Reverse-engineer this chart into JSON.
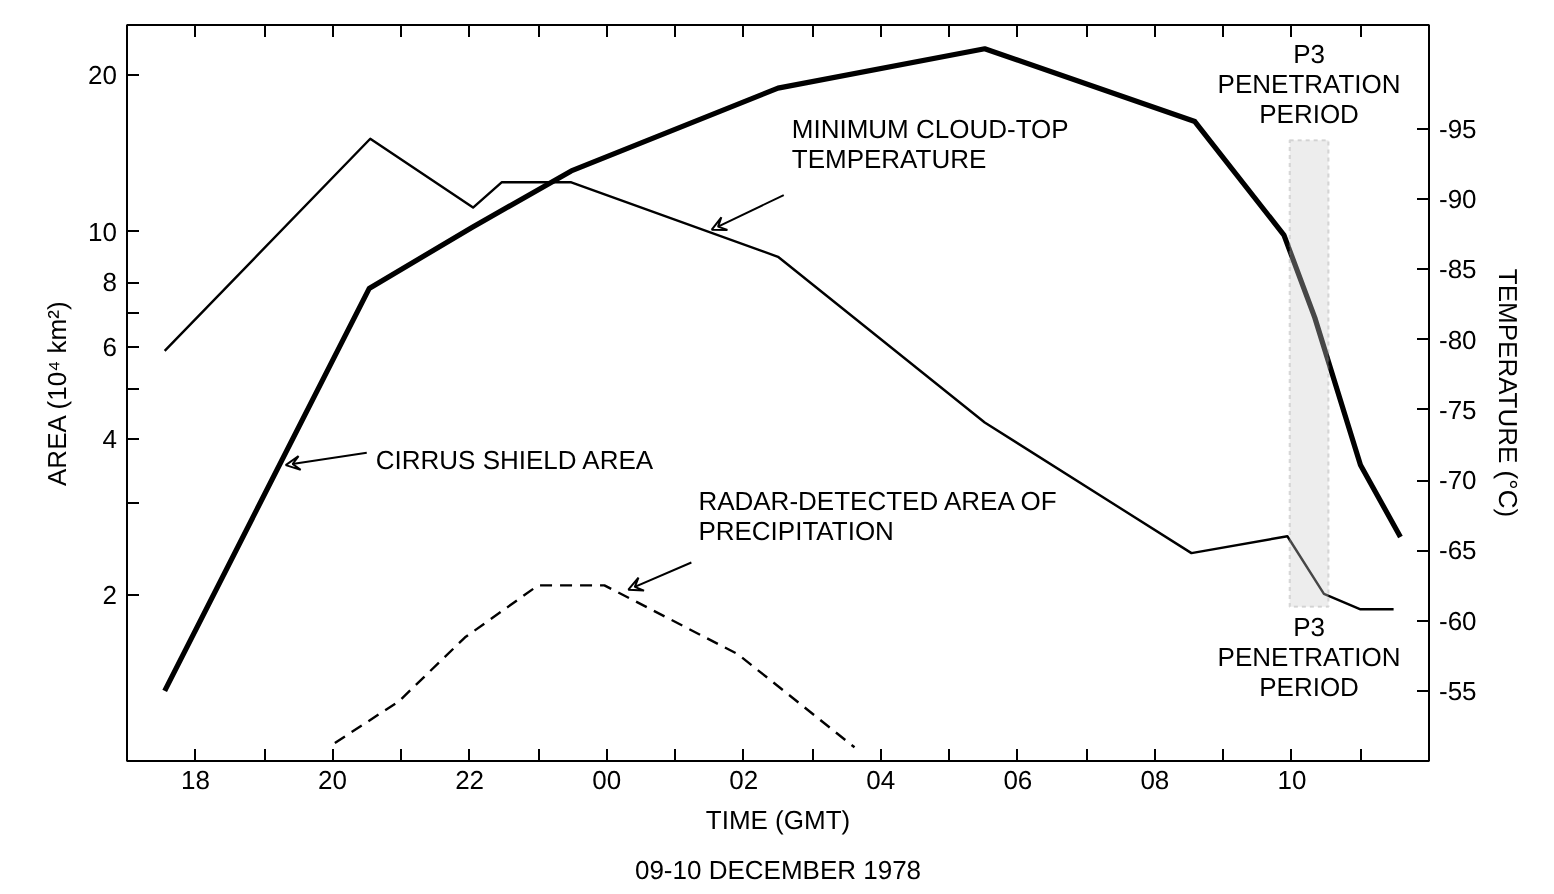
{
  "chart_data": {
    "type": "line",
    "subtitle": "09-10 DECEMBER 1978",
    "xlabel": "TIME (GMT)",
    "ylabel": "AREA (10⁴ km²)",
    "y2label": "TEMPERATURE (°C)",
    "log": "y",
    "grid": false,
    "marker": "none",
    "xlim": [
      "1978-12-09T17:00",
      "1978-12-10T12:00"
    ],
    "xticks": [
      {
        "value": "1978-12-09T18:00",
        "label": "18"
      },
      {
        "value": "1978-12-09T19:00",
        "label": null
      },
      {
        "value": "1978-12-09T20:00",
        "label": "20"
      },
      {
        "value": "1978-12-09T21:00",
        "label": null
      },
      {
        "value": "1978-12-09T22:00",
        "label": "22"
      },
      {
        "value": "1978-12-09T23:00",
        "label": null
      },
      {
        "value": "1978-12-10T00:00",
        "label": "00"
      },
      {
        "value": "1978-12-10T01:00",
        "label": null
      },
      {
        "value": "1978-12-10T02:00",
        "label": "02"
      },
      {
        "value": "1978-12-10T03:00",
        "label": null
      },
      {
        "value": "1978-12-10T04:00",
        "label": "04"
      },
      {
        "value": "1978-12-10T05:00",
        "label": null
      },
      {
        "value": "1978-12-10T06:00",
        "label": "06"
      },
      {
        "value": "1978-12-10T07:00",
        "label": null
      },
      {
        "value": "1978-12-10T08:00",
        "label": "08"
      },
      {
        "value": "1978-12-10T09:00",
        "label": null
      },
      {
        "value": "1978-12-10T10:00",
        "label": "10"
      },
      {
        "value": "1978-12-10T11:00",
        "label": null
      }
    ],
    "ylim": [
      0.96,
      25
    ],
    "yticks": [
      2,
      {
        "value": 3,
        "label": null
      },
      4,
      {
        "value": 5,
        "label": null
      },
      6,
      {
        "value": 7,
        "label": null
      },
      8,
      10,
      20
    ],
    "y2lim": [
      -50,
      -102.4
    ],
    "y2ticks": [
      -55,
      -60,
      -65,
      -70,
      -75,
      -80,
      -85,
      -90,
      -95
    ],
    "series": [
      {
        "color": "#000000",
        "line_style": "solid",
        "x": [
          "1978-12-09T17:33",
          "1978-12-09T20:32",
          "1978-12-09T22:02",
          "1978-12-09T23:29",
          "1978-12-10T02:30",
          "1978-12-10T05:31",
          "1978-12-10T08:35",
          "1978-12-10T09:53",
          "1978-12-10T10:20",
          "1978-12-10T11:00",
          "1978-12-10T11:35"
        ],
        "values": [
          1.31,
          7.78,
          10.2,
          13.1,
          18.9,
          22.5,
          16.3,
          9.86,
          6.84,
          3.56,
          2.59
        ]
      },
      {
        "color": "#000000",
        "line_style": "solid",
        "axis": "y2",
        "x": [
          "1978-12-09T17:33",
          "1978-12-09T20:33",
          "1978-12-09T22:03",
          "1978-12-09T22:28",
          "1978-12-09T23:29",
          "1978-12-10T02:30",
          "1978-12-10T05:31",
          "1978-12-10T08:32",
          "1978-12-10T09:56",
          "1978-12-10T10:28",
          "1978-12-10T11:00",
          "1978-12-10T11:29"
        ],
        "values": [
          -79.2,
          -94.3,
          -89.4,
          -91.2,
          -91.2,
          -85.9,
          -74.1,
          -64.8,
          -66.0,
          -61.9,
          -60.8,
          -60.8
        ]
      },
      {
        "color": "#000000",
        "line_style": "dashed",
        "x": [
          "1978-12-09T20:02",
          "1978-12-09T20:58",
          "1978-12-09T21:56",
          "1978-12-09T23:00",
          "1978-12-09T23:58",
          "1978-12-10T01:55",
          "1978-12-10T03:37"
        ],
        "values": [
          1.04,
          1.25,
          1.66,
          2.09,
          2.09,
          1.54,
          1.02
        ]
      }
    ],
    "bands": [
      {
        "axis": "x",
        "from": "1978-12-10T09:58",
        "to": "1978-12-10T10:32",
        "label": "P3 PENETRATION PERIOD",
        "color": "#cccccc"
      }
    ],
    "annotations": [
      {
        "text": "CIRRUS SHIELD AREA",
        "x": "1978-12-09T19:19",
        "y": 3.56
      },
      {
        "text": "MINIMUM CLOUD-TOP TEMPERATURE",
        "x": "1978-12-10T01:32",
        "y": 10.1
      },
      {
        "text": "RADAR-DETECTED AREA OF PRECIPITATION",
        "x": "1978-12-10T00:19",
        "y": 2.05
      },
      "P3 PENETRATION PERIOD"
    ]
  }
}
